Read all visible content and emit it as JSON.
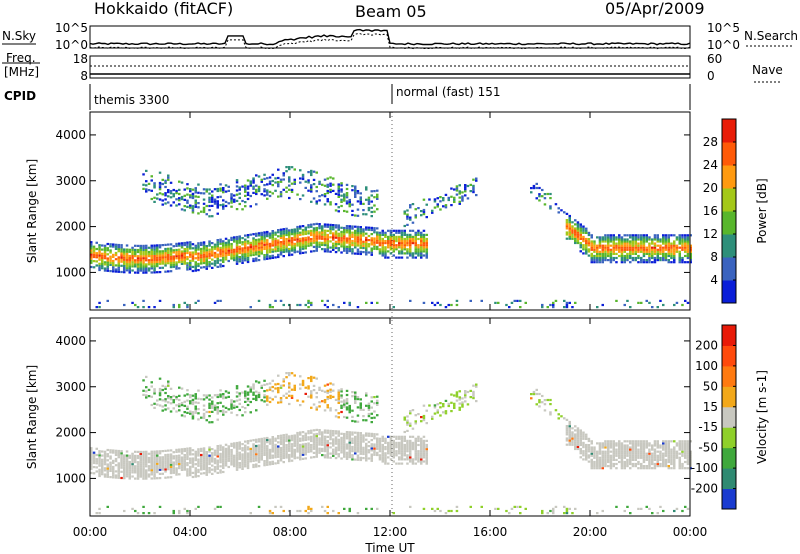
{
  "header": {
    "left": "Hokkaido (fitACF)",
    "center": "Beam 05",
    "right": "05/Apr/2009"
  },
  "labels": {
    "nsky": "N.Sky",
    "nsearch": "N.Search",
    "freq_line1": "Freq.",
    "freq_line2": "[MHz]",
    "nave": "Nave",
    "cpid": "CPID",
    "cpid_mode1": "themis 3300",
    "cpid_mode2": "normal (fast) 151",
    "noise_ticks": [
      "10^5",
      "10^0"
    ],
    "freq_ticks": [
      "18",
      "8"
    ],
    "nave_ticks": [
      "60",
      "0"
    ]
  },
  "chart_data": [
    {
      "type": "heatmap",
      "name": "power",
      "xlabel": "",
      "ylabel": "Slant Range [km]",
      "xlim": [
        "00:00",
        "24:00"
      ],
      "ylim": [
        180,
        4500
      ],
      "x_ticks": [
        "00:00",
        "04:00",
        "08:00",
        "12:00",
        "16:00",
        "20:00",
        "00:00"
      ],
      "y_ticks": [
        1000,
        2000,
        3000,
        4000
      ],
      "colorbar": {
        "label": "Power [dB]",
        "ticks": [
          4,
          8,
          12,
          16,
          20,
          24,
          28
        ],
        "colors": [
          "#0a1ed8",
          "#3a63bf",
          "#2e8f7a",
          "#58b62c",
          "#a4c818",
          "#ff9a10",
          "#ff5a08",
          "#e81c08"
        ]
      }
    },
    {
      "type": "heatmap",
      "name": "velocity",
      "xlabel": "Time UT",
      "ylabel": "Slant Range [km]",
      "xlim": [
        "00:00",
        "24:00"
      ],
      "ylim": [
        180,
        4500
      ],
      "x_ticks": [
        "00:00",
        "04:00",
        "08:00",
        "12:00",
        "16:00",
        "20:00",
        "00:00"
      ],
      "y_ticks": [
        1000,
        2000,
        3000,
        4000
      ],
      "colorbar": {
        "label": "Velocity [m s-1]",
        "ticks": [
          200,
          100,
          50,
          15,
          -15,
          -50,
          -100,
          -200
        ],
        "colors": [
          "#1a3bd0",
          "#2f8a72",
          "#3fa83c",
          "#8fd02a",
          "#c8c8c0",
          "#f2a81a",
          "#ff7a10",
          "#ff4a0c",
          "#e81a08"
        ]
      }
    }
  ]
}
